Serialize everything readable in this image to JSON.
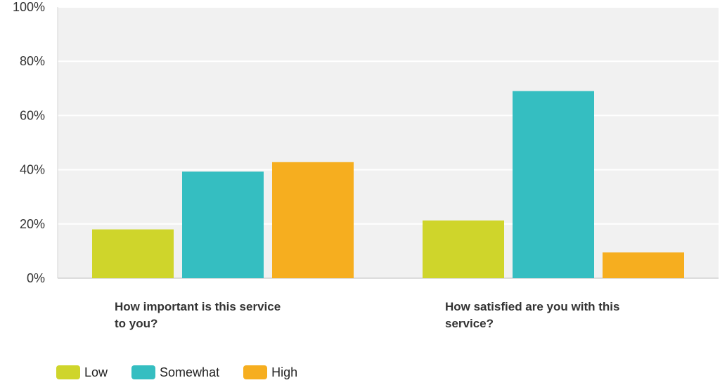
{
  "chart_data": {
    "type": "bar",
    "categories": [
      [
        "How important is this service",
        "to you?"
      ],
      [
        "How satisfied are you with this",
        "service?"
      ]
    ],
    "series": [
      {
        "name": "Low",
        "color": "#cfd52b",
        "values": [
          18,
          21.3
        ]
      },
      {
        "name": "Somewhat",
        "color": "#35bec1",
        "values": [
          39.3,
          69
        ]
      },
      {
        "name": "High",
        "color": "#f6ae1f",
        "values": [
          42.8,
          9.5
        ]
      }
    ],
    "ylim": [
      0,
      100
    ],
    "yticks": [
      {
        "value": 0,
        "label": "0%"
      },
      {
        "value": 20,
        "label": "20%"
      },
      {
        "value": 40,
        "label": "40%"
      },
      {
        "value": 60,
        "label": "60%"
      },
      {
        "value": 80,
        "label": "80%"
      },
      {
        "value": 100,
        "label": "100%"
      }
    ],
    "grid": true,
    "legend_position": "bottom-left",
    "background_color": "#f1f1f1"
  }
}
